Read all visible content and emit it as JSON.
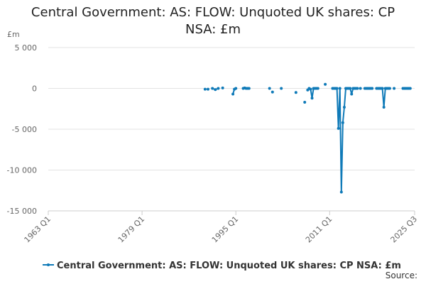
{
  "chart_data": {
    "type": "line",
    "title": "Central Government: AS: FLOW: Unquoted UK shares: CP NSA: £m",
    "y_label": "£m",
    "source": "Source:",
    "xlim": [
      1963,
      2025.5
    ],
    "xticks": [
      {
        "value": 1963,
        "label": "1963 Q1"
      },
      {
        "value": 1979,
        "label": "1979 Q1"
      },
      {
        "value": 1995,
        "label": "1995 Q1"
      },
      {
        "value": 2011,
        "label": "2011 Q1"
      },
      {
        "value": 2025.5,
        "label": "2025 Q3"
      }
    ],
    "ylim": [
      -15000,
      5000
    ],
    "yticks": [
      {
        "value": 5000,
        "label": "5 000"
      },
      0,
      {
        "value": -5000,
        "label": "-5 000"
      },
      {
        "value": -10000,
        "label": "-10 000"
      },
      {
        "value": -15000,
        "label": "-15 000"
      }
    ],
    "grid": true,
    "legend": "bottom",
    "x": [
      1989.75,
      1990.0,
      1990.25,
      1990.5,
      1991.0,
      1991.5,
      1992.0,
      1992.25,
      1992.75,
      1993.0,
      1994.5,
      1994.75,
      1995.0,
      1995.25,
      1996.25,
      1996.5,
      1996.75,
      1997.0,
      1997.25,
      1997.5,
      2000.75,
      2001.0,
      2001.25,
      2001.5,
      2002.75,
      2003.0,
      2005.25,
      2005.5,
      2006.75,
      2007.0,
      2007.25,
      2007.5,
      2007.75,
      2008.0,
      2008.25,
      2008.5,
      2008.75,
      2009.0,
      2009.25,
      2010.25,
      2010.5,
      2011.5,
      2011.75,
      2012.0,
      2012.25,
      2012.5,
      2012.75,
      2013.0,
      2013.25,
      2013.5,
      2013.75,
      2014.0,
      2014.25,
      2014.5,
      2014.75,
      2015.0,
      2015.25,
      2015.5,
      2015.75,
      2016.0,
      2016.25,
      2016.5,
      2017.0,
      2017.25,
      2017.5,
      2017.75,
      2018.0,
      2018.25,
      2018.5,
      2019.0,
      2019.25,
      2019.5,
      2019.75,
      2020.0,
      2020.25,
      2020.5,
      2020.75,
      2021.0,
      2021.25,
      2021.5,
      2022.0,
      2022.25,
      2023.5,
      2023.75,
      2024.0,
      2024.25,
      2024.5,
      2024.75
    ],
    "series": [
      {
        "name": "Central Government: AS: FLOW: Unquoted UK shares: CP NSA: £m",
        "color": "#0f7ab8",
        "values": [
          -100,
          null,
          -100,
          null,
          0,
          -150,
          0,
          null,
          50,
          null,
          -700,
          -100,
          0,
          null,
          0,
          50,
          0,
          0,
          0,
          null,
          0,
          null,
          -450,
          null,
          0,
          null,
          -500,
          null,
          -1700,
          null,
          -200,
          0,
          -100,
          -1200,
          0,
          0,
          0,
          0,
          null,
          500,
          null,
          0,
          0,
          0,
          0,
          -4900,
          0,
          -12700,
          -4200,
          -2300,
          0,
          0,
          0,
          0,
          -700,
          0,
          0,
          0,
          0,
          null,
          0,
          null,
          0,
          0,
          0,
          0,
          0,
          0,
          null,
          0,
          0,
          0,
          0,
          0,
          -2300,
          0,
          0,
          0,
          0,
          null,
          0,
          null,
          0,
          0,
          0,
          0,
          0,
          0
        ]
      }
    ]
  }
}
